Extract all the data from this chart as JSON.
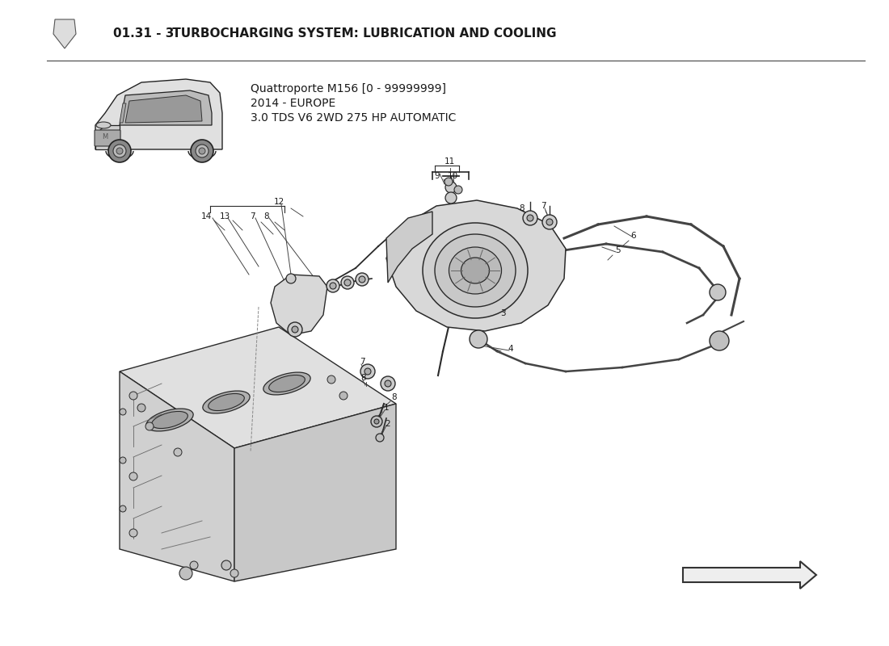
{
  "title_num": "01.31 - 3",
  "title_rest": " TURBOCHARGING SYSTEM: LUBRICATION AND COOLING",
  "car_info_line1": "Quattroporte M156 [0 - 99999999]",
  "car_info_line2": "2014 - EUROPE",
  "car_info_line3": "3.0 TDS V6 2WD 275 HP AUTOMATIC",
  "bg_color": "#FFFFFF",
  "text_color": "#1a1a1a",
  "line_color": "#2a2a2a",
  "thin_color": "#555555"
}
